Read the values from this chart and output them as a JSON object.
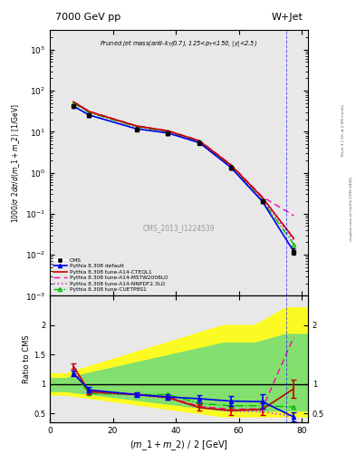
{
  "title_left": "7000 GeV pp",
  "title_right": "W+Jet",
  "watermark": "CMS_2013_I1224539",
  "right_label1": "Rivet 3.1.10, ≥ 2.5M events",
  "right_label2": "mcplots.cern.ch [arXiv:1306.3436]",
  "cms_x": [
    7.5,
    12.5,
    27.5,
    37.5,
    47.5,
    57.5,
    67.5,
    77.5
  ],
  "cms_y": [
    42.0,
    25.0,
    11.5,
    9.2,
    5.3,
    1.35,
    0.2,
    0.012
  ],
  "cms_yerr": [
    2.5,
    1.8,
    0.9,
    0.7,
    0.4,
    0.12,
    0.02,
    0.002
  ],
  "default_x": [
    7.5,
    12.5,
    27.5,
    37.5,
    47.5,
    57.5,
    67.5,
    77.5
  ],
  "default_y": [
    42.0,
    25.5,
    11.8,
    9.3,
    5.4,
    1.35,
    0.2,
    0.012
  ],
  "cteql1_x": [
    7.5,
    12.5,
    27.5,
    37.5,
    47.5,
    57.5,
    67.5,
    77.5
  ],
  "cteql1_y": [
    54.0,
    31.0,
    13.8,
    10.5,
    6.0,
    1.55,
    0.25,
    0.025
  ],
  "mstw_x": [
    7.5,
    12.5,
    27.5,
    37.5,
    47.5,
    57.5,
    67.5,
    77.5
  ],
  "mstw_y": [
    54.0,
    31.5,
    14.0,
    10.6,
    6.1,
    1.6,
    0.26,
    0.09
  ],
  "nnpdf_x": [
    7.5,
    12.5,
    27.5,
    37.5,
    47.5,
    57.5,
    67.5,
    77.5
  ],
  "nnpdf_y": [
    52.0,
    30.0,
    13.5,
    10.2,
    5.85,
    1.5,
    0.23,
    0.022
  ],
  "cuetp_x": [
    7.5,
    12.5,
    27.5,
    37.5,
    47.5,
    57.5,
    67.5,
    77.5
  ],
  "cuetp_y": [
    50.0,
    29.0,
    13.2,
    10.0,
    5.7,
    1.45,
    0.21,
    0.018
  ],
  "ratio_default_x": [
    7.5,
    12.5,
    27.5,
    37.5,
    47.5,
    57.5,
    67.5,
    77.5
  ],
  "ratio_default_y": [
    1.18,
    0.9,
    0.82,
    0.78,
    0.75,
    0.71,
    0.7,
    0.44
  ],
  "ratio_default_yerr": [
    0.05,
    0.05,
    0.04,
    0.04,
    0.06,
    0.09,
    0.12,
    0.08
  ],
  "ratio_cteql1_x": [
    7.5,
    12.5,
    27.5,
    37.5,
    47.5,
    57.5,
    67.5,
    77.5
  ],
  "ratio_cteql1_y": [
    1.3,
    0.87,
    0.82,
    0.77,
    0.6,
    0.55,
    0.57,
    0.92
  ],
  "ratio_cteql1_yerr": [
    0.05,
    0.04,
    0.03,
    0.03,
    0.05,
    0.08,
    0.1,
    0.15
  ],
  "ratio_mstw_x": [
    7.5,
    12.5,
    27.5,
    37.5,
    47.5,
    57.5,
    67.5,
    77.5
  ],
  "ratio_mstw_y": [
    1.3,
    0.88,
    0.83,
    0.78,
    0.62,
    0.57,
    0.58,
    1.8
  ],
  "ratio_nnpdf_x": [
    7.5,
    12.5,
    27.5,
    37.5,
    47.5,
    57.5,
    67.5,
    77.5
  ],
  "ratio_nnpdf_y": [
    1.24,
    0.85,
    0.81,
    0.76,
    0.6,
    0.54,
    0.53,
    0.45
  ],
  "ratio_cuetp_x": [
    7.5,
    12.5,
    27.5,
    37.5,
    47.5,
    57.5,
    67.5,
    77.5
  ],
  "ratio_cuetp_y": [
    1.19,
    0.84,
    0.82,
    0.82,
    0.67,
    0.63,
    0.63,
    0.61
  ],
  "xlim": [
    0,
    82
  ],
  "ylim_main": [
    0.001,
    3000
  ],
  "ylim_ratio": [
    0.35,
    2.5
  ],
  "color_cms": "#000000",
  "color_default": "#0000ee",
  "color_cteql1": "#cc0000",
  "color_mstw": "#ff00aa",
  "color_nnpdf": "#cc44cc",
  "color_cuetp": "#00bb00",
  "bg_color": "#e8e8e8"
}
